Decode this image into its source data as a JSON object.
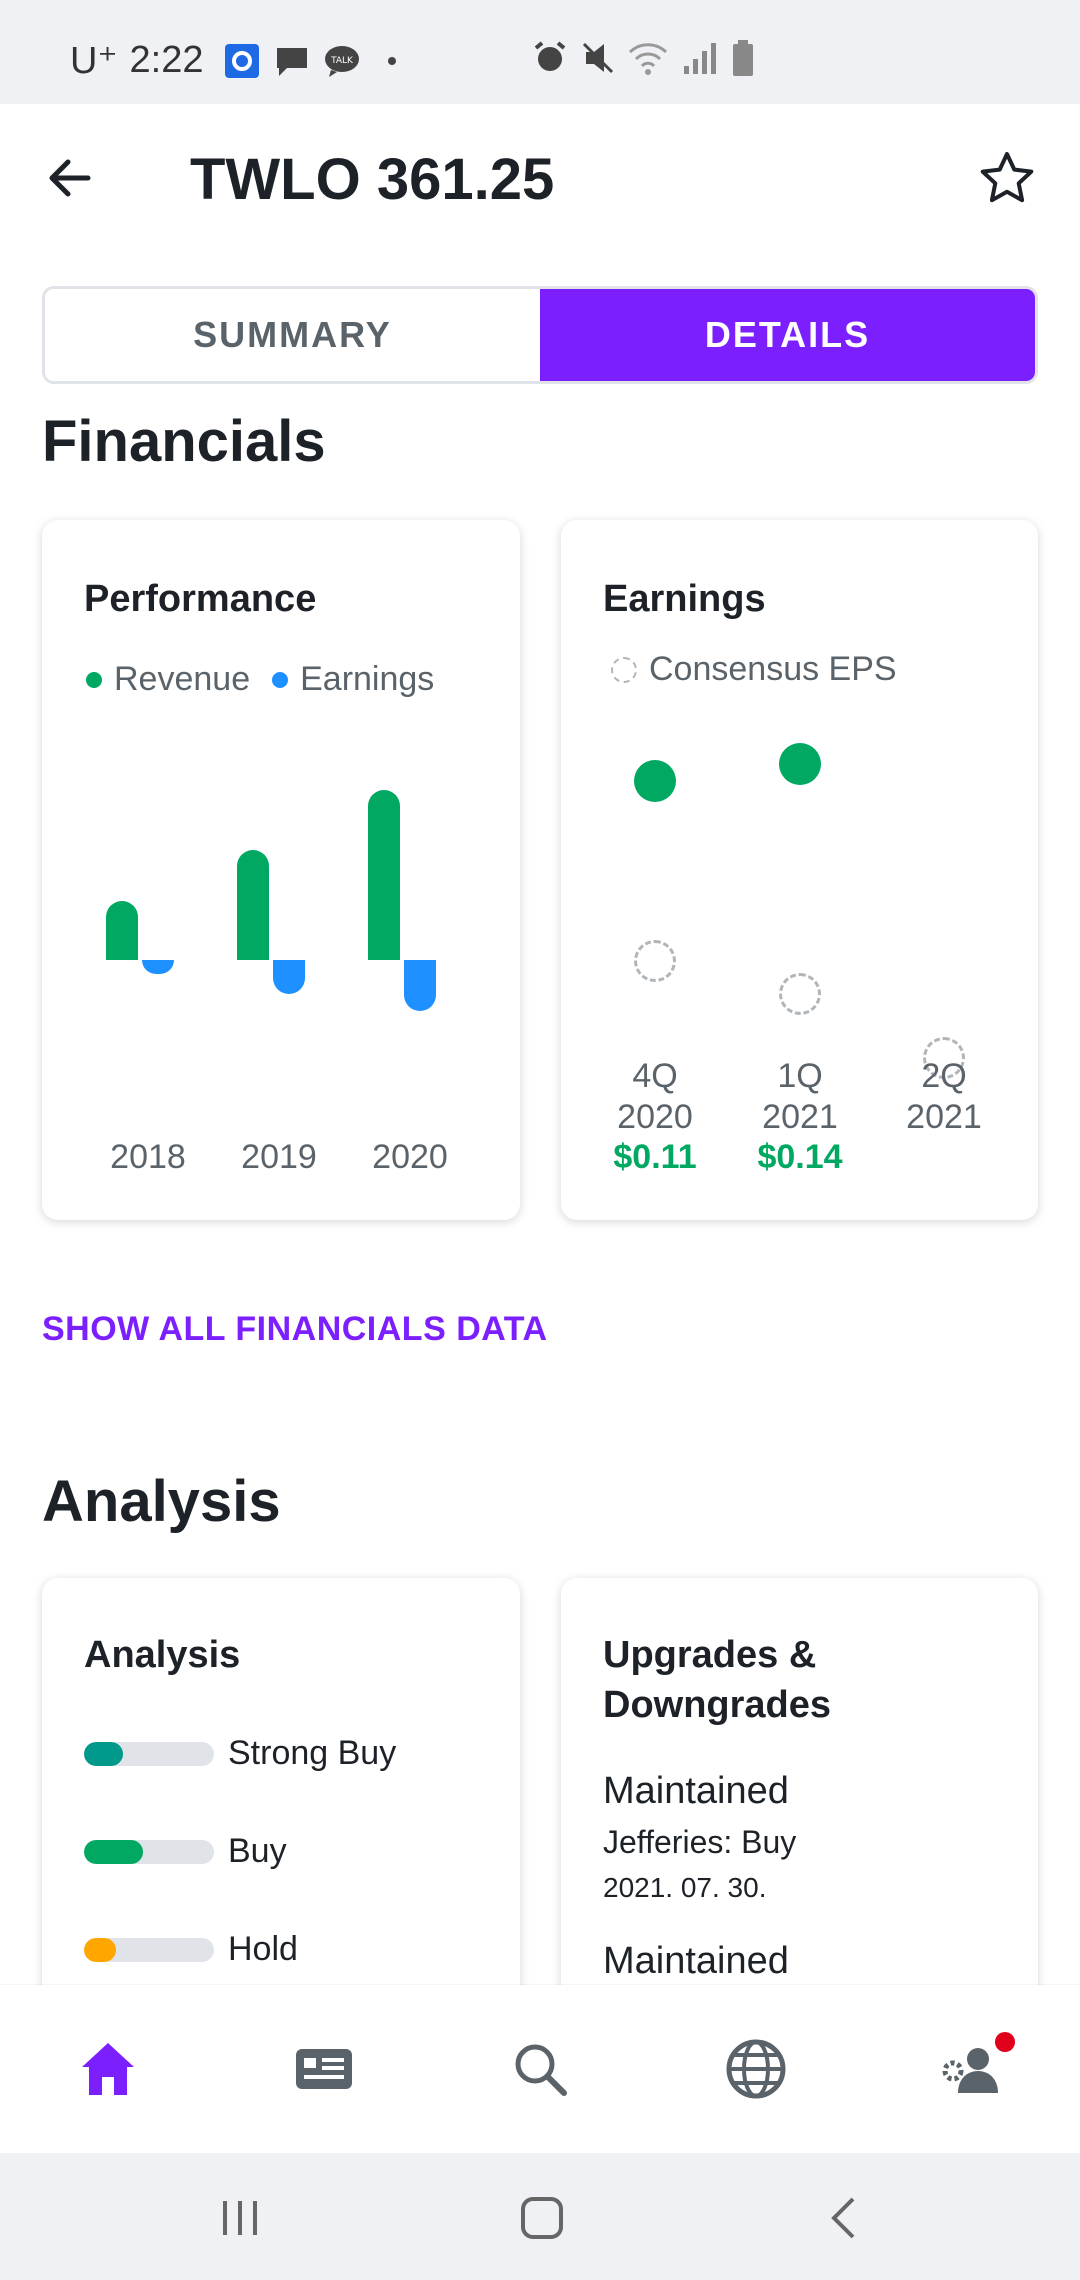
{
  "status_bar": {
    "carrier": "U⁺",
    "time": "2:22"
  },
  "header": {
    "title": "TWLO 361.25"
  },
  "tabs": [
    {
      "label": "SUMMARY",
      "active": false
    },
    {
      "label": "DETAILS",
      "active": true
    }
  ],
  "financials": {
    "heading": "Financials",
    "performance": {
      "title": "Performance",
      "legend": [
        {
          "label": "Revenue",
          "color": "#00a862"
        },
        {
          "label": "Earnings",
          "color": "#1e90ff"
        }
      ],
      "years": [
        "2018",
        "2019",
        "2020"
      ],
      "revenue": [
        0.35,
        0.65,
        1.0
      ],
      "earnings": [
        -0.08,
        -0.2,
        -0.3
      ]
    },
    "earnings": {
      "title": "Earnings",
      "legend": "Consensus EPS",
      "quarters": [
        {
          "q": "4Q",
          "y": "2020",
          "actual": "$0.11"
        },
        {
          "q": "1Q",
          "y": "2021",
          "actual": "$0.14"
        },
        {
          "q": "2Q",
          "y": "2021",
          "actual": ""
        }
      ]
    },
    "show_all_link": "SHOW ALL FINANCIALS DATA"
  },
  "analysis": {
    "heading": "Analysis",
    "card_title": "Analysis",
    "ratings": [
      {
        "label": "Strong Buy",
        "fraction": 0.3,
        "color": "#00998c"
      },
      {
        "label": "Buy",
        "fraction": 0.45,
        "color": "#00a862"
      },
      {
        "label": "Hold",
        "fraction": 0.25,
        "color": "#ffa700"
      }
    ],
    "upgrades": {
      "title_line1": "Upgrades &",
      "title_line2": "Downgrades",
      "items": [
        {
          "action": "Maintained",
          "firm": "Jefferies: Buy",
          "date": "2021. 07. 30."
        },
        {
          "action": "Maintained",
          "firm": "",
          "date": ""
        }
      ]
    }
  },
  "bottom_nav": [
    "home",
    "news",
    "search",
    "markets",
    "profile"
  ]
}
